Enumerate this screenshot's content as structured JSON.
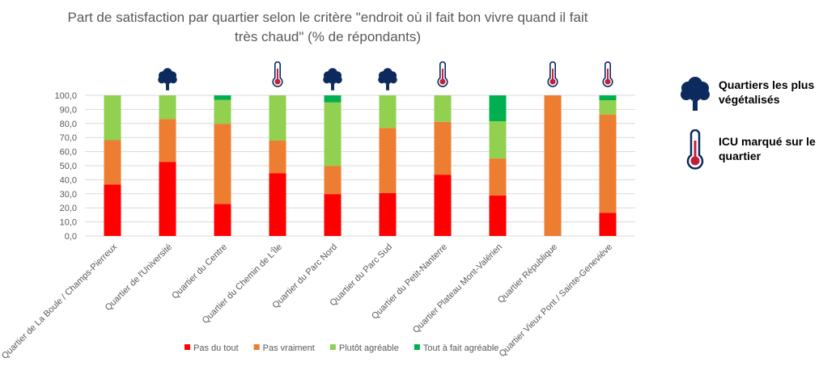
{
  "chart_data": {
    "type": "bar",
    "stacked": true,
    "title": "Part de satisfaction par quartier selon le critère \"endroit où il fait bon vivre quand il fait très chaud\" (% de répondants)",
    "title_lines": [
      "Part de satisfaction par quartier selon le critère \"endroit où il fait bon vivre quand il fait",
      "très chaud\" (% de répondants)"
    ],
    "ylim": [
      0,
      100
    ],
    "yticks": [
      "0,0",
      "10,0",
      "20,0",
      "30,0",
      "40,0",
      "50,0",
      "60,0",
      "70,0",
      "80,0",
      "90,0",
      "100,0"
    ],
    "grid": true,
    "legend_placement": "bottom",
    "categories": [
      "Quartier de La Boule / Champs-Pierreux",
      "Quartier de l'Université",
      "Quartier du Centre",
      "Quartier du Chemin de L'Île",
      "Quartier du Parc Nord",
      "Quartier du Parc Sud",
      "Quartier du Petit-Nanterre",
      "Quartier Plateau Mont-Valérien",
      "Quartier République",
      "Quartier Vieux Pont / Sainte-Geneviève"
    ],
    "series": [
      {
        "name": "Pas du tout",
        "color": "#ff0000",
        "values": [
          36.5,
          52.6,
          22.8,
          44.7,
          29.8,
          30.5,
          43.6,
          28.8,
          0,
          16.5
        ]
      },
      {
        "name": "Pas vraiment",
        "color": "#ed7d31",
        "values": [
          31.6,
          30.5,
          57.0,
          23.1,
          19.9,
          46.3,
          37.6,
          26.3,
          100,
          69.9
        ]
      },
      {
        "name": "Plutôt agréable",
        "color": "#92d050",
        "values": [
          31.9,
          16.9,
          16.9,
          32.2,
          45.3,
          23.2,
          18.8,
          26.5,
          0,
          10.1
        ]
      },
      {
        "name": "Tout à fait agréable",
        "color": "#00b050",
        "values": [
          0,
          0,
          3.3,
          0,
          5.0,
          0,
          0,
          18.4,
          0,
          3.5
        ]
      }
    ],
    "markers": [
      "none",
      "tree",
      "none",
      "thermometer",
      "tree",
      "tree",
      "thermometer",
      "none",
      "thermometer",
      "thermometer"
    ]
  },
  "side_legend": {
    "tree_label": "Quartiers les plus végétalisés",
    "thermo_label": "ICU marqué sur le quartier",
    "icon_color": "#0d2a5e",
    "thermo_color": "#c0203a"
  }
}
